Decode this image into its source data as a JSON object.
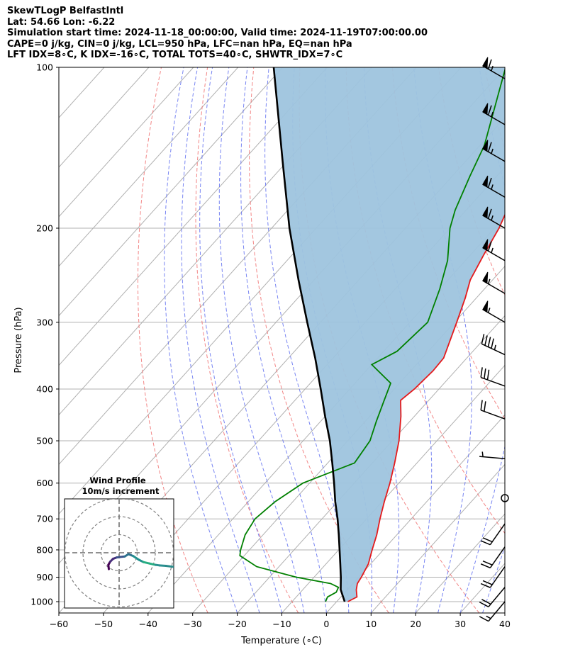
{
  "header": {
    "line1": "SkewTLogP BelfastIntl",
    "line2": "Lat: 54.66   Lon: -6.22",
    "line3": "Simulation start time: 2024-11-18_00:00:00, Valid time: 2024-11-19T07:00:00.00",
    "line4": "CAPE=0 j/kg, CIN=0 j/kg, LCL=950 hPa, LFC=nan hPa, EQ=nan hPa",
    "line5": "LFT IDX=8∘C, K IDX=-16∘C, TOTAL TOTS=40∘C, SHWTR_IDX=7∘C"
  },
  "chart_data": {
    "type": "line",
    "subtype": "skew-T log-P diagram",
    "xlabel": "Temperature (∘C)",
    "ylabel": "Pressure (hPa)",
    "xlim": [
      -60,
      40
    ],
    "ylim": [
      1050,
      100
    ],
    "x_ticks": [
      "−60",
      "−50",
      "−40",
      "−30",
      "−20",
      "−10",
      "0",
      "10",
      "20",
      "30",
      "40"
    ],
    "y_ticks": [
      "100",
      "200",
      "300",
      "400",
      "500",
      "600",
      "700",
      "800",
      "900",
      "1000"
    ],
    "y_scale": "log",
    "grid": true,
    "colors": {
      "temperature": "#e41a1c",
      "dewpoint": "#008000",
      "parcel": "#000000",
      "shade": "#9ec4de",
      "dry_adiabat": "#f07070",
      "moist_adiabat": "#6070f0",
      "isotherm": "#b0b0b0"
    },
    "series": [
      {
        "name": "",
        "role": "temperature",
        "points": [
          [
            1000,
            2.5
          ],
          [
            980,
            3.6
          ],
          [
            950,
            2.0
          ],
          [
            925,
            1.0
          ],
          [
            900,
            0.6
          ],
          [
            850,
            -0.5
          ],
          [
            800,
            -2.5
          ],
          [
            750,
            -4.5
          ],
          [
            700,
            -7.0
          ],
          [
            650,
            -9.5
          ],
          [
            600,
            -12.0
          ],
          [
            550,
            -15.0
          ],
          [
            500,
            -18.5
          ],
          [
            450,
            -23.0
          ],
          [
            420,
            -26.3
          ],
          [
            400,
            -25.5
          ],
          [
            370,
            -25.0
          ],
          [
            350,
            -25.2
          ],
          [
            300,
            -29.5
          ],
          [
            270,
            -32.5
          ],
          [
            250,
            -35.0
          ],
          [
            225,
            -37.0
          ],
          [
            200,
            -39.0
          ],
          [
            180,
            -41.5
          ],
          [
            150,
            -47.0
          ],
          [
            125,
            -53.0
          ],
          [
            100,
            -61.5
          ]
        ]
      },
      {
        "name": "",
        "role": "dewpoint",
        "points": [
          [
            1000,
            -2.5
          ],
          [
            980,
            -3.0
          ],
          [
            960,
            -2.0
          ],
          [
            940,
            -2.5
          ],
          [
            925,
            -5.0
          ],
          [
            900,
            -14.0
          ],
          [
            860,
            -25.0
          ],
          [
            820,
            -31.0
          ],
          [
            800,
            -32.0
          ],
          [
            750,
            -34.0
          ],
          [
            700,
            -35.0
          ],
          [
            650,
            -34.0
          ],
          [
            600,
            -31.5
          ],
          [
            550,
            -24.0
          ],
          [
            500,
            -25.0
          ],
          [
            460,
            -27.5
          ],
          [
            420,
            -30.0
          ],
          [
            390,
            -32.0
          ],
          [
            360,
            -40.0
          ],
          [
            340,
            -37.0
          ],
          [
            300,
            -36.0
          ],
          [
            260,
            -40.0
          ],
          [
            230,
            -44.0
          ],
          [
            200,
            -50.0
          ],
          [
            185,
            -52.5
          ],
          [
            160,
            -56.0
          ],
          [
            140,
            -59.0
          ],
          [
            100,
            -70.0
          ]
        ]
      },
      {
        "name": "",
        "role": "parcel",
        "points": [
          [
            1000,
            1.8
          ],
          [
            950,
            -1.5
          ],
          [
            900,
            -4.0
          ],
          [
            850,
            -6.8
          ],
          [
            800,
            -9.8
          ],
          [
            750,
            -13.0
          ],
          [
            700,
            -16.5
          ],
          [
            650,
            -20.5
          ],
          [
            600,
            -24.5
          ],
          [
            550,
            -29.0
          ],
          [
            500,
            -34.0
          ],
          [
            450,
            -40.0
          ],
          [
            400,
            -46.5
          ],
          [
            350,
            -54.0
          ],
          [
            300,
            -63.0
          ],
          [
            250,
            -73.5
          ],
          [
            200,
            -86.0
          ],
          [
            150,
            -101.0
          ],
          [
            100,
            -122.0
          ]
        ]
      }
    ],
    "wind_barbs": [
      {
        "pressure": 105,
        "speed_kt": 65,
        "direction_deg": 300
      },
      {
        "pressure": 128,
        "speed_kt": 65,
        "direction_deg": 300
      },
      {
        "pressure": 150,
        "speed_kt": 65,
        "direction_deg": 300
      },
      {
        "pressure": 175,
        "speed_kt": 65,
        "direction_deg": 300
      },
      {
        "pressure": 200,
        "speed_kt": 65,
        "direction_deg": 300
      },
      {
        "pressure": 230,
        "speed_kt": 65,
        "direction_deg": 300
      },
      {
        "pressure": 265,
        "speed_kt": 55,
        "direction_deg": 300
      },
      {
        "pressure": 300,
        "speed_kt": 55,
        "direction_deg": 300
      },
      {
        "pressure": 345,
        "speed_kt": 45,
        "direction_deg": 295
      },
      {
        "pressure": 395,
        "speed_kt": 30,
        "direction_deg": 290
      },
      {
        "pressure": 455,
        "speed_kt": 20,
        "direction_deg": 290
      },
      {
        "pressure": 540,
        "speed_kt": 5,
        "direction_deg": 275
      },
      {
        "pressure": 640,
        "speed_kt": 0,
        "direction_deg": 0
      },
      {
        "pressure": 715,
        "speed_kt": 20,
        "direction_deg": 215
      },
      {
        "pressure": 790,
        "speed_kt": 20,
        "direction_deg": 215
      },
      {
        "pressure": 860,
        "speed_kt": 20,
        "direction_deg": 215
      },
      {
        "pressure": 940,
        "speed_kt": 20,
        "direction_deg": 220
      },
      {
        "pressure": 1000,
        "speed_kt": 15,
        "direction_deg": 220
      }
    ],
    "inset": {
      "title_line1": "Wind Profile",
      "title_line2": "10m/s increment",
      "hodograph": [
        [
          -2.2,
          -3.5
        ],
        [
          -2.3,
          -2.6
        ],
        [
          -1.9,
          -1.9
        ],
        [
          -1.3,
          -1.3
        ],
        [
          -0.5,
          -1.0
        ],
        [
          0.3,
          -0.9
        ],
        [
          1.2,
          -0.8
        ],
        [
          2.0,
          -0.3
        ],
        [
          3.0,
          -0.7
        ],
        [
          4.2,
          -1.5
        ],
        [
          5.2,
          -2.0
        ],
        [
          6.5,
          -2.3
        ],
        [
          7.8,
          -2.6
        ],
        [
          8.6,
          -2.7
        ],
        [
          10.0,
          -2.8
        ],
        [
          11.5,
          -3.0
        ]
      ]
    }
  }
}
